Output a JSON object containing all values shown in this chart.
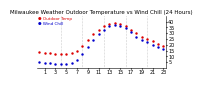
{
  "title": "Milwaukee Weather Outdoor Temperature vs Wind Chill (24 Hours)",
  "title_fontsize": 4.0,
  "background_color": "#ffffff",
  "grid_color": "#999999",
  "hours": [
    0,
    1,
    2,
    3,
    4,
    5,
    6,
    7,
    8,
    9,
    10,
    11,
    12,
    13,
    14,
    15,
    16,
    17,
    18,
    19,
    20,
    21,
    22,
    23
  ],
  "temp": [
    14,
    13,
    13,
    12,
    12,
    12,
    13,
    15,
    19,
    24,
    29,
    33,
    36,
    38,
    39,
    38,
    36,
    33,
    30,
    27,
    25,
    23,
    21,
    19
  ],
  "wind_chill": [
    5,
    4,
    4,
    3,
    3,
    3,
    4,
    7,
    12,
    18,
    24,
    29,
    33,
    36,
    37,
    36,
    34,
    31,
    27,
    24,
    22,
    20,
    18,
    16
  ],
  "temp_color": "#dd0000",
  "wc_color": "#0000cc",
  "ylim_min": 0,
  "ylim_max": 45,
  "yticks": [
    5,
    10,
    15,
    20,
    25,
    30,
    35,
    40
  ],
  "ytick_labels": [
    "5",
    "10",
    "15",
    "20",
    "25",
    "30",
    "35",
    "40"
  ],
  "xtick_positions": [
    1,
    3,
    5,
    7,
    9,
    11,
    13,
    15,
    17,
    19,
    21,
    23
  ],
  "xtick_labels": [
    "1",
    "3",
    "5",
    "7",
    "9",
    "11",
    "13",
    "15",
    "17",
    "19",
    "21",
    "23"
  ],
  "vgrid_positions": [
    4,
    8,
    12,
    16,
    20
  ],
  "dot_size": 1.5,
  "tick_fontsize": 3.5,
  "legend_items": [
    {
      "label": "Outdoor Temp",
      "color": "#dd0000"
    },
    {
      "label": "Wind Chill",
      "color": "#0000cc"
    }
  ]
}
